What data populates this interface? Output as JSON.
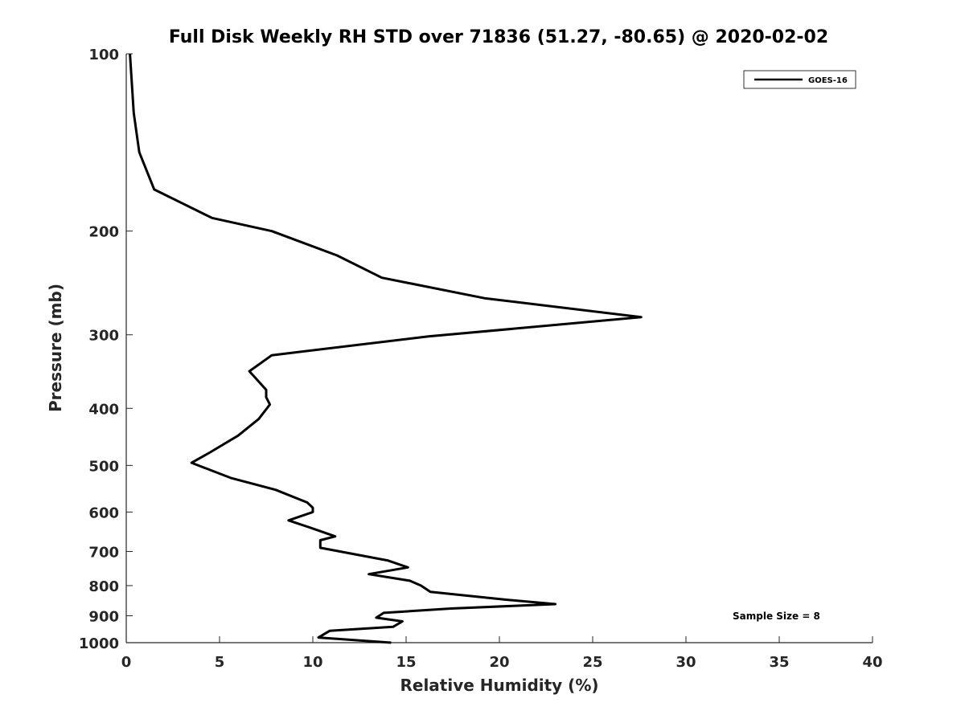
{
  "chart_data": {
    "type": "line",
    "title": "Full Disk Weekly RH STD over 71836 (51.27, -80.65) @ 2020-02-02",
    "xlabel": "Relative Humidity (%)",
    "ylabel": "Pressure (mb)",
    "xlim": [
      0,
      40
    ],
    "ylim": [
      100,
      1000
    ],
    "y_scale": "log",
    "y_reversed": true,
    "x_ticks": [
      0,
      5,
      10,
      15,
      20,
      25,
      30,
      35,
      40
    ],
    "y_ticks": [
      100,
      200,
      300,
      400,
      500,
      600,
      700,
      800,
      900,
      1000
    ],
    "grid": false,
    "legend_position": "top-right",
    "series": [
      {
        "name": "GOES-16",
        "color": "#000000",
        "x": [
          0.2,
          0.4,
          0.7,
          1.5,
          4.6,
          7.8,
          11.3,
          13.7,
          19.2,
          27.6,
          16.2,
          7.8,
          6.6,
          7.5,
          7.5,
          7.7,
          7.1,
          6.0,
          4.5,
          3.5,
          5.6,
          8.0,
          9.7,
          10.0,
          10.0,
          8.7,
          10.0,
          11.2,
          10.4,
          10.4,
          14.0,
          15.1,
          13.0,
          15.2,
          15.8,
          16.3,
          20.3,
          23.0,
          17.4,
          13.8,
          13.4,
          14.8,
          14.3,
          10.9,
          10.3,
          14.2
        ],
        "y": [
          100,
          126,
          147,
          170,
          190,
          200,
          220,
          240,
          260,
          280,
          302,
          325,
          346,
          372,
          383,
          394,
          417,
          445,
          475,
          495,
          525,
          550,
          578,
          590,
          600,
          620,
          640,
          660,
          670,
          690,
          725,
          745,
          765,
          785,
          800,
          820,
          845,
          860,
          875,
          890,
          907,
          920,
          940,
          955,
          980,
          1000
        ]
      }
    ],
    "annotation": "Sample Size = 8"
  }
}
